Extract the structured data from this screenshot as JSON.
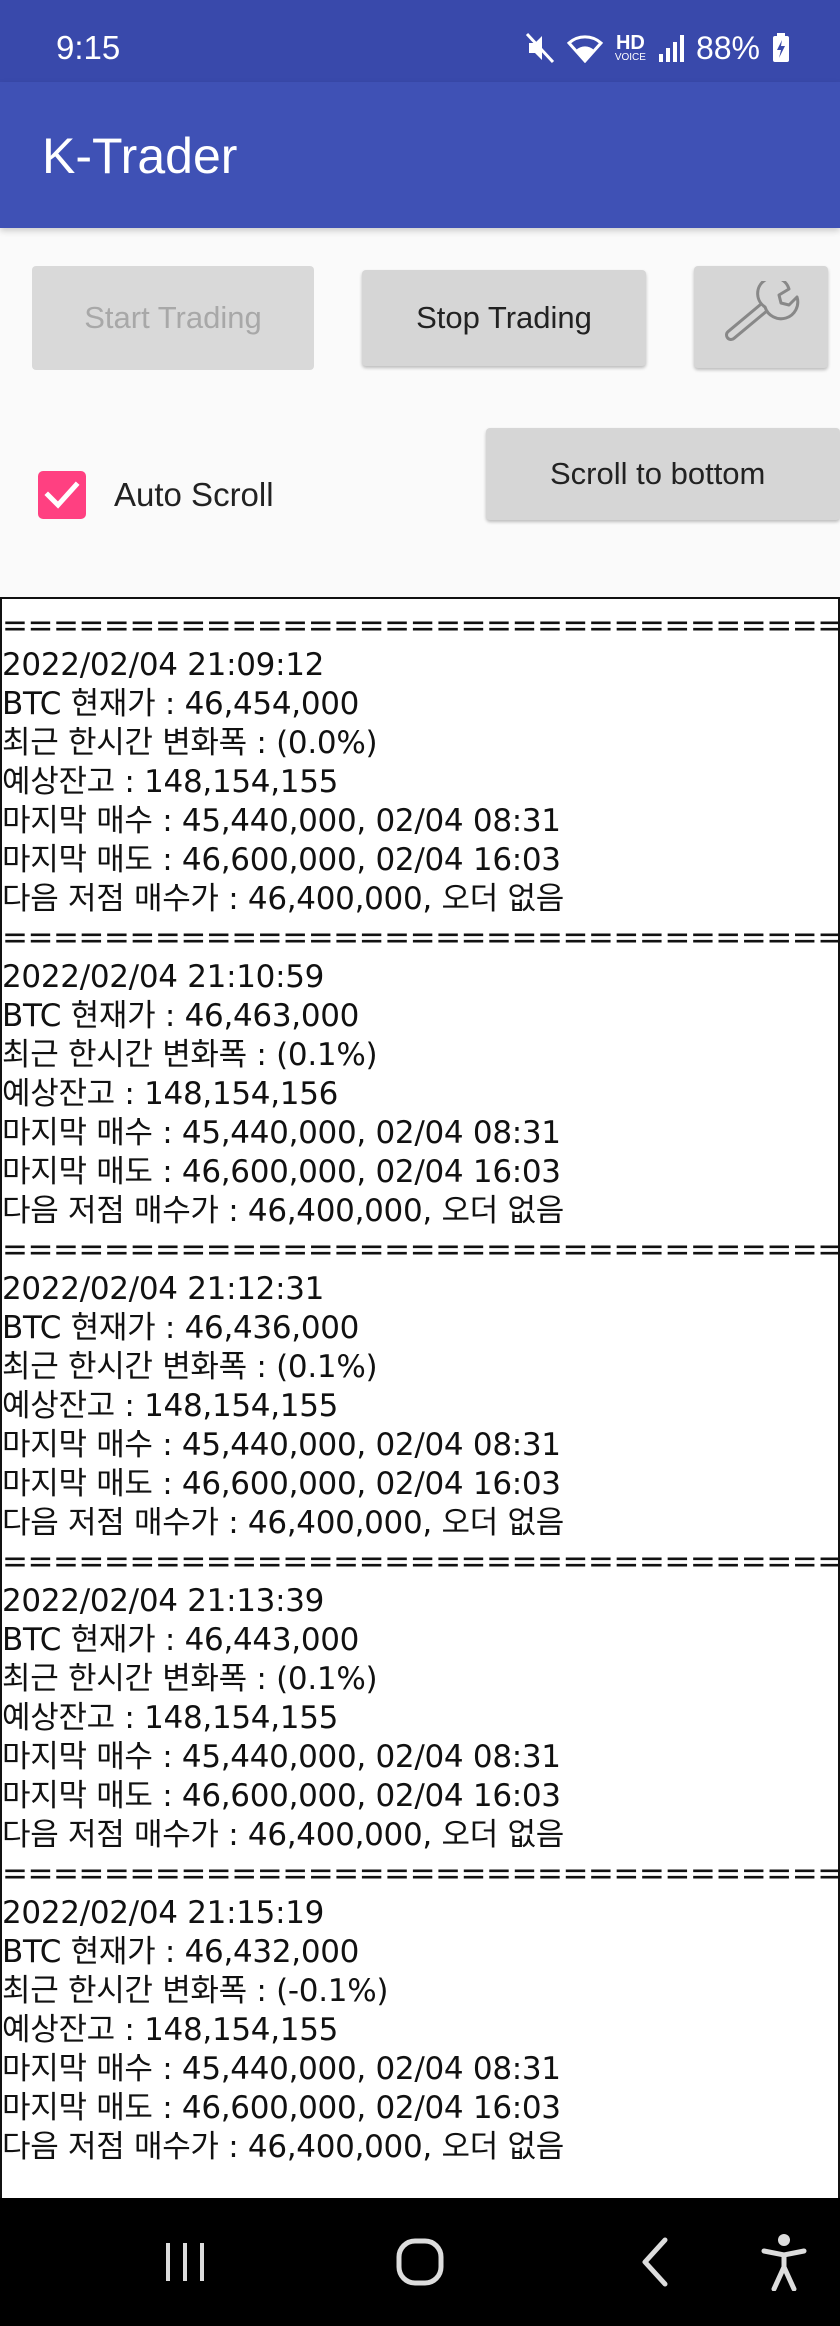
{
  "status_bar": {
    "time": "9:15",
    "battery_percent": "88%",
    "icons": [
      "mute-icon",
      "wifi-icon",
      "hd-voice-icon",
      "signal-icon",
      "battery-charging-icon"
    ],
    "hd_label": "HD",
    "voice_label": "VOICE"
  },
  "app_bar": {
    "title": "K-Trader",
    "color": "#3f51b5"
  },
  "controls": {
    "start_label": "Start Trading",
    "start_enabled": false,
    "stop_label": "Stop Trading",
    "settings_icon": "wrench-icon",
    "auto_scroll_label": "Auto Scroll",
    "auto_scroll_checked": true,
    "scroll_bottom_label": "Scroll to bottom",
    "accent_color": "#ff4081"
  },
  "log": {
    "separator": "==============================================",
    "entries": [
      {
        "timestamp": "2022/02/04 21:09:12",
        "price": "BTC 현재가 : 46,454,000",
        "change": "최근 한시간 변화폭 : (0.0%)",
        "balance": "예상잔고 : 148,154,155",
        "last_buy": "마지막 매수 : 45,440,000, 02/04 08:31",
        "last_sell": "마지막 매도 : 46,600,000, 02/04 16:03",
        "next_buy": "다음 저점 매수가 : 46,400,000, 오더 없음"
      },
      {
        "timestamp": "2022/02/04 21:10:59",
        "price": "BTC 현재가 : 46,463,000",
        "change": "최근 한시간 변화폭 : (0.1%)",
        "balance": "예상잔고 : 148,154,156",
        "last_buy": "마지막 매수 : 45,440,000, 02/04 08:31",
        "last_sell": "마지막 매도 : 46,600,000, 02/04 16:03",
        "next_buy": "다음 저점 매수가 : 46,400,000, 오더 없음"
      },
      {
        "timestamp": "2022/02/04 21:12:31",
        "price": "BTC 현재가 : 46,436,000",
        "change": "최근 한시간 변화폭 : (0.1%)",
        "balance": "예상잔고 : 148,154,155",
        "last_buy": "마지막 매수 : 45,440,000, 02/04 08:31",
        "last_sell": "마지막 매도 : 46,600,000, 02/04 16:03",
        "next_buy": "다음 저점 매수가 : 46,400,000, 오더 없음"
      },
      {
        "timestamp": "2022/02/04 21:13:39",
        "price": "BTC 현재가 : 46,443,000",
        "change": "최근 한시간 변화폭 : (0.1%)",
        "balance": "예상잔고 : 148,154,155",
        "last_buy": "마지막 매수 : 45,440,000, 02/04 08:31",
        "last_sell": "마지막 매도 : 46,600,000, 02/04 16:03",
        "next_buy": "다음 저점 매수가 : 46,400,000, 오더 없음"
      },
      {
        "timestamp": "2022/02/04 21:15:19",
        "price": "BTC 현재가 : 46,432,000",
        "change": "최근 한시간 변화폭 : (-0.1%)",
        "balance": "예상잔고 : 148,154,155",
        "last_buy": "마지막 매수 : 45,440,000, 02/04 08:31",
        "last_sell": "마지막 매도 : 46,600,000, 02/04 16:03",
        "next_buy": "다음 저점 매수가 : 46,400,000, 오더 없음"
      }
    ]
  },
  "nav_bar": {
    "buttons": [
      "recents-icon",
      "home-icon",
      "back-icon",
      "accessibility-icon"
    ]
  }
}
